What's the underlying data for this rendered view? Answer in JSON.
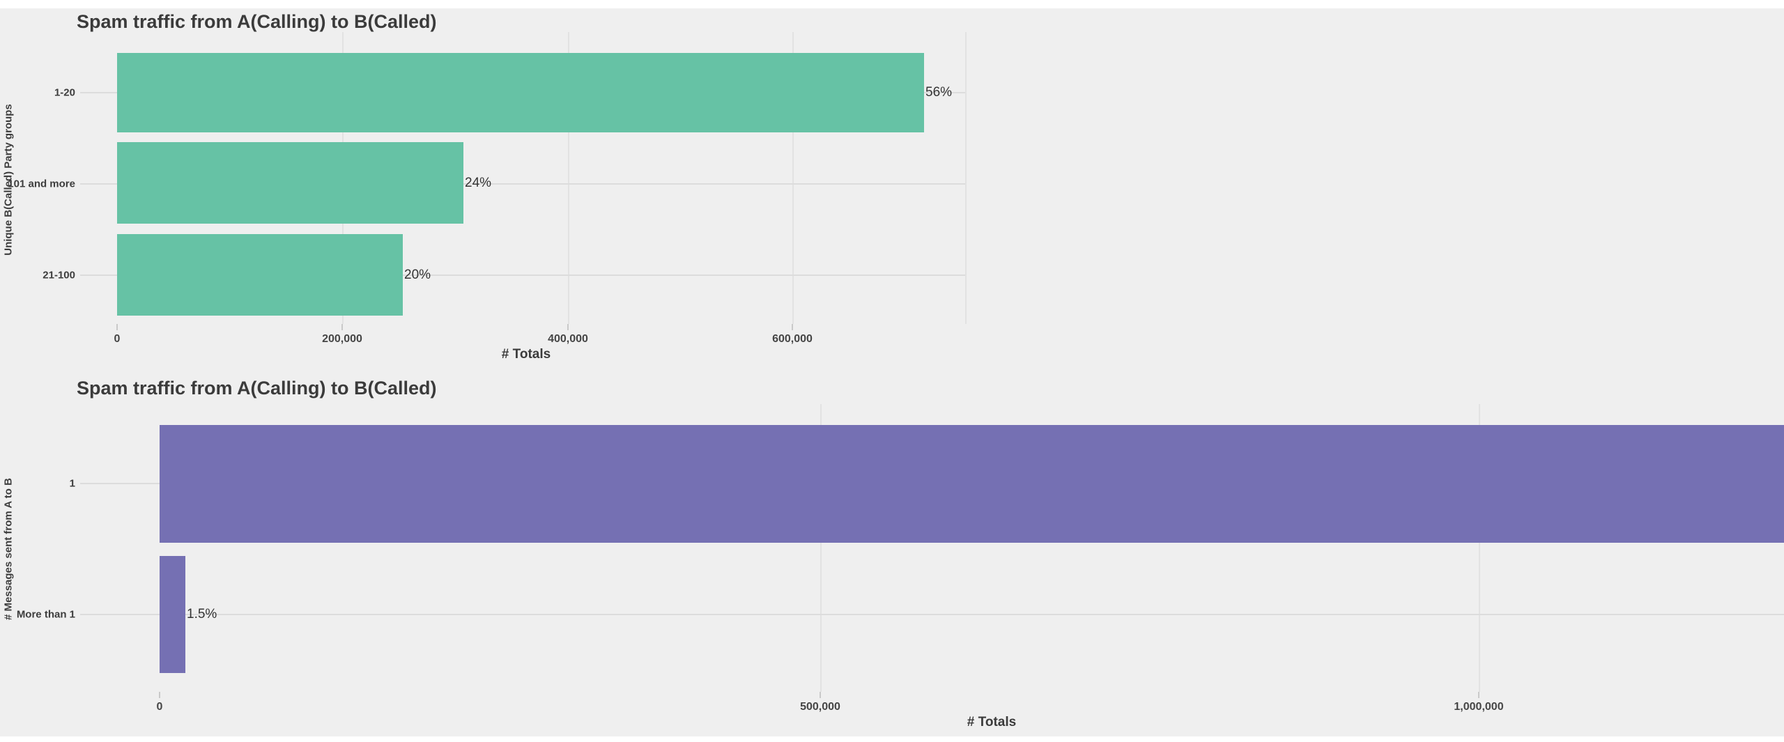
{
  "page": {
    "background_color": "#efefef",
    "text_color": "#3b3b3b"
  },
  "chart_data": [
    {
      "type": "bar",
      "orientation": "horizontal",
      "title": "Spam traffic from A(Calling) to B(Called)",
      "xlabel": "# Totals",
      "ylabel": "Unique B(Called) Party groups",
      "bar_color": "#66c2a5",
      "grid": true,
      "legend": "none",
      "xlim": [
        0,
        753000
      ],
      "x_tick_values": [
        0,
        200000,
        400000,
        600000
      ],
      "x_tick_labels": [
        "0",
        "200,000",
        "400,000",
        "600,000"
      ],
      "categories": [
        "1-20",
        "101 and more",
        "21-100"
      ],
      "values": [
        717000,
        308000,
        254000
      ],
      "bars": [
        {
          "category": "1-20",
          "value": 717000,
          "pct_label": "56%"
        },
        {
          "category": "101 and more",
          "value": 308000,
          "pct_label": "24%"
        },
        {
          "category": "21-100",
          "value": 254000,
          "pct_label": "20%"
        }
      ]
    },
    {
      "type": "bar",
      "orientation": "horizontal",
      "title": "Spam traffic from A(Calling) to B(Called)",
      "xlabel": "# Totals",
      "ylabel": "# Messages sent from A to B",
      "bar_color": "#7570b3",
      "grid": true,
      "legend": "none",
      "xlim": [
        0,
        1321000
      ],
      "x_tick_values": [
        0,
        500000,
        1000000
      ],
      "x_tick_labels": [
        "0",
        "500,000",
        "1,000,000"
      ],
      "categories": [
        "1",
        "More than 1"
      ],
      "values": [
        1258000,
        19500
      ],
      "bars": [
        {
          "category": "1",
          "value": 1258000,
          "pct_label": ""
        },
        {
          "category": "More than 1",
          "value": 19500,
          "pct_label": "1.5%"
        }
      ]
    }
  ]
}
